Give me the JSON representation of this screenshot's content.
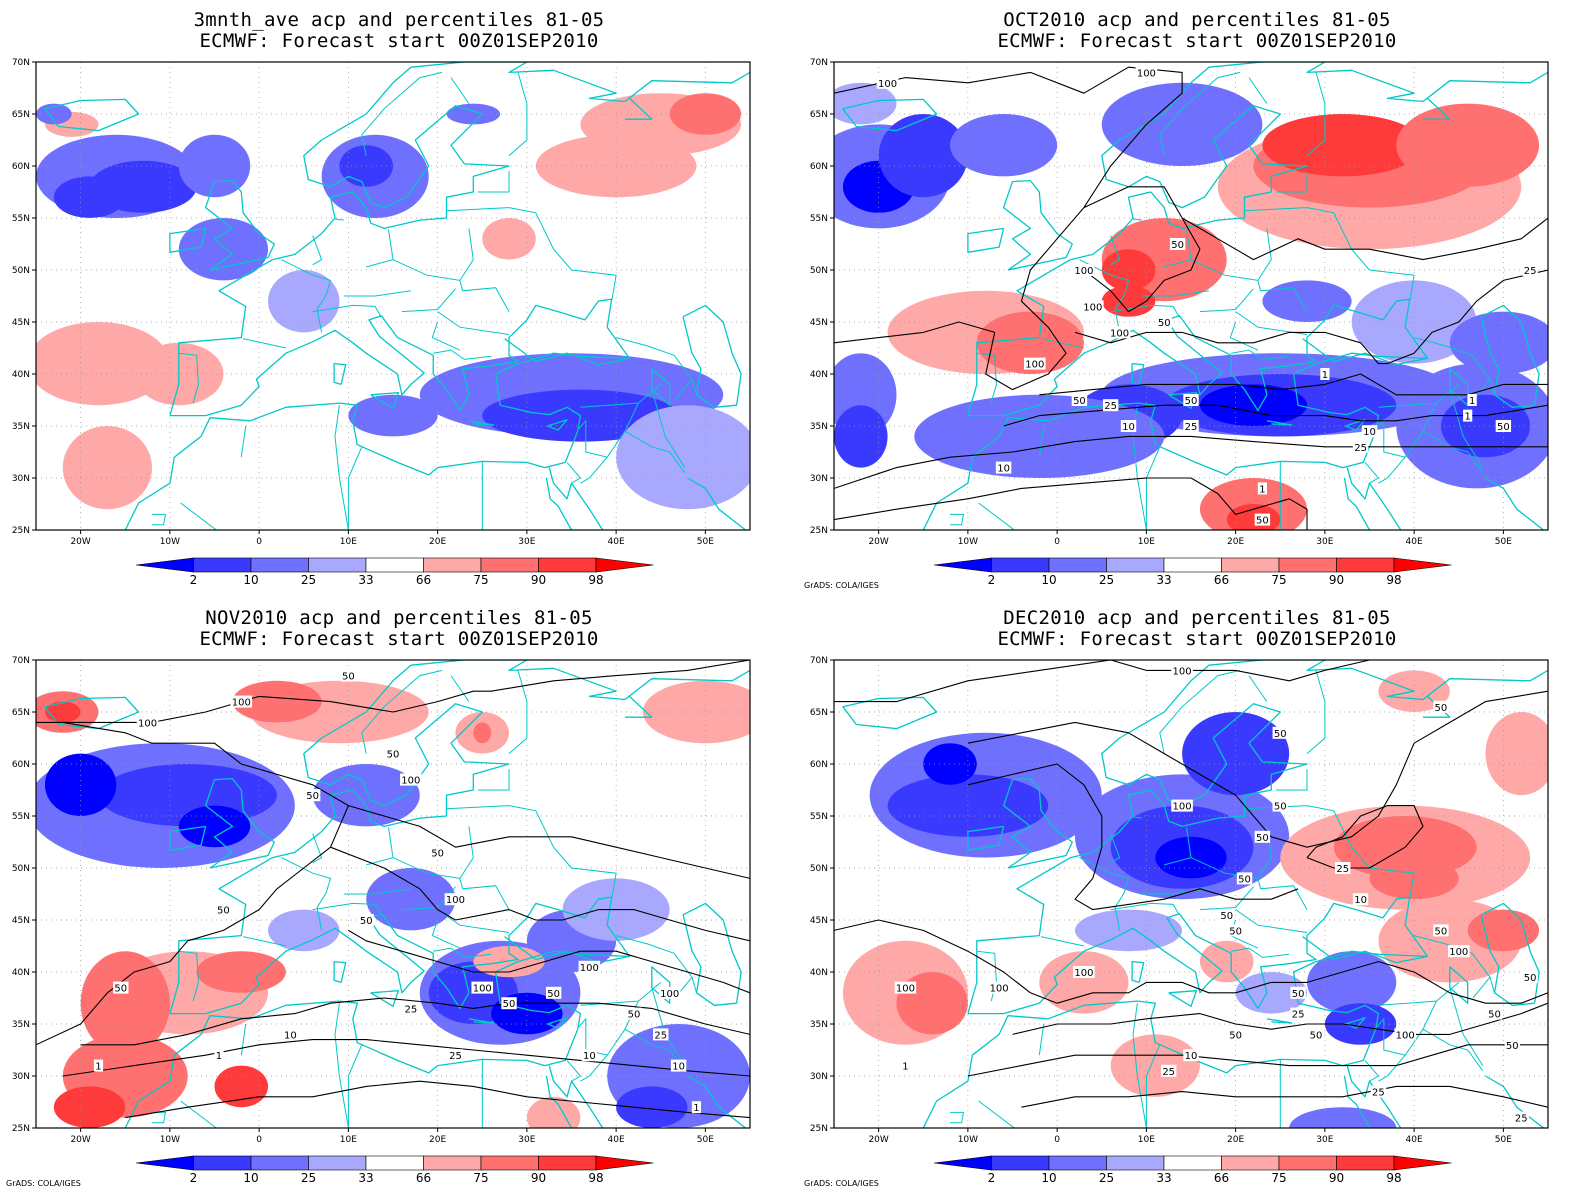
{
  "figure": {
    "x_ticks": [
      "20W",
      "10W",
      "0",
      "10E",
      "20E",
      "30E",
      "40E",
      "50E"
    ],
    "y_ticks": [
      "70N",
      "65N",
      "60N",
      "55N",
      "50N",
      "45N",
      "40N",
      "35N",
      "30N",
      "25N"
    ],
    "colorbar_labels": [
      "2",
      "10",
      "25",
      "33",
      "66",
      "75",
      "90",
      "98"
    ],
    "colorbar_colors": [
      "#0000ff",
      "#3a3aff",
      "#7070ff",
      "#a8a8ff",
      "#ffffff",
      "#ffa8a8",
      "#ff7070",
      "#ff3a3a",
      "#ff0000"
    ],
    "coast_color": "#00c8c8",
    "credit": "GrADS: COLA/IGES"
  },
  "panels": [
    {
      "title_line1": "3mnth_ave acp and percentiles 81-05",
      "title_line2": "ECMWF: Forecast start 00Z01SEP2010",
      "show_credit": false,
      "contour_labels": []
    },
    {
      "title_line1": "OCT2010 acp and percentiles 81-05",
      "title_line2": "ECMWF: Forecast start 00Z01SEP2010",
      "show_credit": true,
      "contour_labels": [
        "100",
        "100",
        "50",
        "100",
        "100",
        "100",
        "50",
        "25",
        "100",
        "50",
        "25",
        "10",
        "50",
        "25",
        "1",
        "1",
        "1",
        "50",
        "25",
        "10",
        "10",
        "1",
        "50"
      ]
    },
    {
      "title_line1": "NOV2010 acp and percentiles 81-05",
      "title_line2": "ECMWF: Forecast start 00Z01SEP2010",
      "show_credit": true,
      "contour_labels": [
        "100",
        "100",
        "50",
        "50",
        "100",
        "50",
        "50",
        "100",
        "50",
        "100",
        "100",
        "50",
        "50",
        "25",
        "10",
        "1",
        "10",
        "25",
        "1",
        "50",
        "100",
        "50",
        "25",
        "10",
        "1",
        "50"
      ]
    },
    {
      "title_line1": "DEC2010 acp and percentiles 81-05",
      "title_line2": "ECMWF: Forecast start 00Z01SEP2010",
      "show_credit": true,
      "contour_labels": [
        "100",
        "50",
        "50",
        "50",
        "100",
        "50",
        "50",
        "50",
        "100",
        "100",
        "100",
        "50",
        "25",
        "10",
        "50",
        "100",
        "50",
        "25",
        "10",
        "25",
        "50",
        "50",
        "100",
        "25",
        "50",
        "50",
        "1",
        "25",
        "50"
      ]
    }
  ]
}
